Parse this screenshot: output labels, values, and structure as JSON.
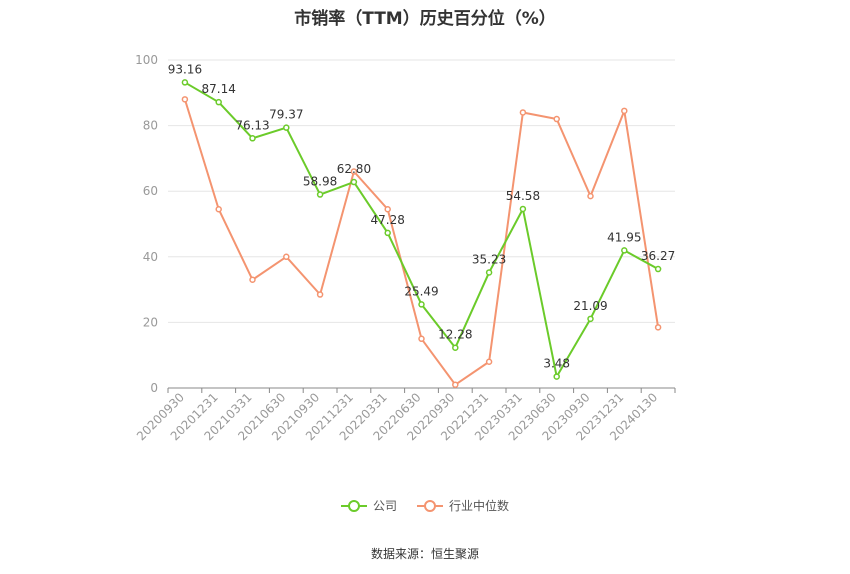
{
  "chart_data": {
    "type": "line",
    "title": "市销率（TTM）历史百分位（%）",
    "xlabel": "",
    "ylabel": "",
    "ylim": [
      0,
      100
    ],
    "yticks": [
      0,
      20,
      40,
      60,
      80,
      100
    ],
    "categories": [
      "20200930",
      "20201231",
      "20210331",
      "20210630",
      "20210930",
      "20211231",
      "20220331",
      "20220630",
      "20220930",
      "20221231",
      "20230331",
      "20230630",
      "20230930",
      "20231231",
      "20240130"
    ],
    "series": [
      {
        "name": "公司",
        "color": "#6bcb2a",
        "values": [
          93.16,
          87.14,
          76.13,
          79.37,
          58.98,
          62.8,
          47.28,
          25.49,
          12.28,
          35.23,
          54.58,
          3.48,
          21.09,
          41.95,
          36.27
        ],
        "labels": [
          "93.16",
          "87.14",
          "76.13",
          "79.37",
          "58.98",
          "62.80",
          "47.28",
          "25.49",
          "12.28",
          "35.23",
          "54.58",
          "3.48",
          "21.09",
          "41.95",
          "36.27"
        ]
      },
      {
        "name": "行业中位数",
        "color": "#f49470",
        "values": [
          88,
          54.5,
          33,
          40,
          28.5,
          66,
          54.5,
          15,
          1,
          8,
          84,
          82,
          58.5,
          84.5,
          18.5
        ]
      }
    ],
    "grid": true,
    "legend_position": "bottom"
  },
  "source": "数据来源：恒生聚源"
}
